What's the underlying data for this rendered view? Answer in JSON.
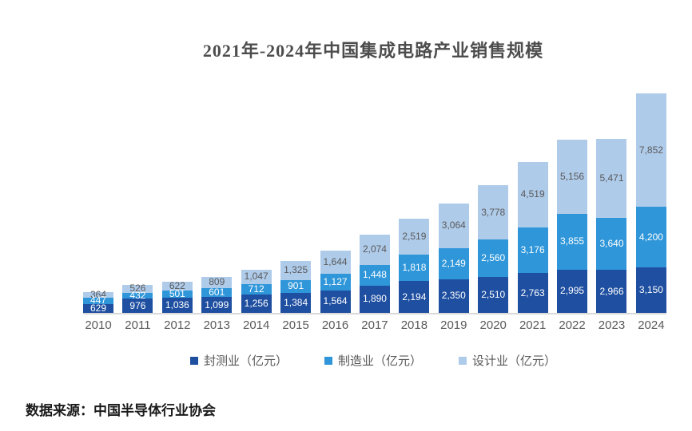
{
  "title": "2021年-2024年中国集成电路产业销售规模",
  "source": "数据来源：中国半导体行业协会",
  "chart_data": {
    "type": "bar",
    "stacked": true,
    "title": "2021年-2024年中国集成电路产业销售规模",
    "unit": "亿元",
    "legend_position": "bottom",
    "grid": false,
    "categories": [
      "2010",
      "2011",
      "2012",
      "2013",
      "2014",
      "2015",
      "2016",
      "2017",
      "2018",
      "2019",
      "2020",
      "2021",
      "2022",
      "2023",
      "2024"
    ],
    "series": [
      {
        "name": "封测业（亿元）",
        "color": "#1f4fa0",
        "label_color": "#ffffff",
        "values": [
          629,
          976,
          1036,
          1099,
          1256,
          1384,
          1564,
          1890,
          2194,
          2350,
          2510,
          2763,
          2995,
          2966,
          3150
        ]
      },
      {
        "name": "制造业（亿元）",
        "color": "#2e96d9",
        "label_color": "#ffffff",
        "values": [
          447,
          432,
          501,
          601,
          712,
          901,
          1127,
          1448,
          1818,
          2149,
          2560,
          3176,
          3855,
          3640,
          4200
        ]
      },
      {
        "name": "设计业（亿元）",
        "color": "#afcbea",
        "label_color": "#595959",
        "values": [
          364,
          526,
          622,
          809,
          1047,
          1325,
          1644,
          2074,
          2519,
          3064,
          3778,
          4519,
          5156,
          5471,
          7852
        ]
      }
    ]
  }
}
